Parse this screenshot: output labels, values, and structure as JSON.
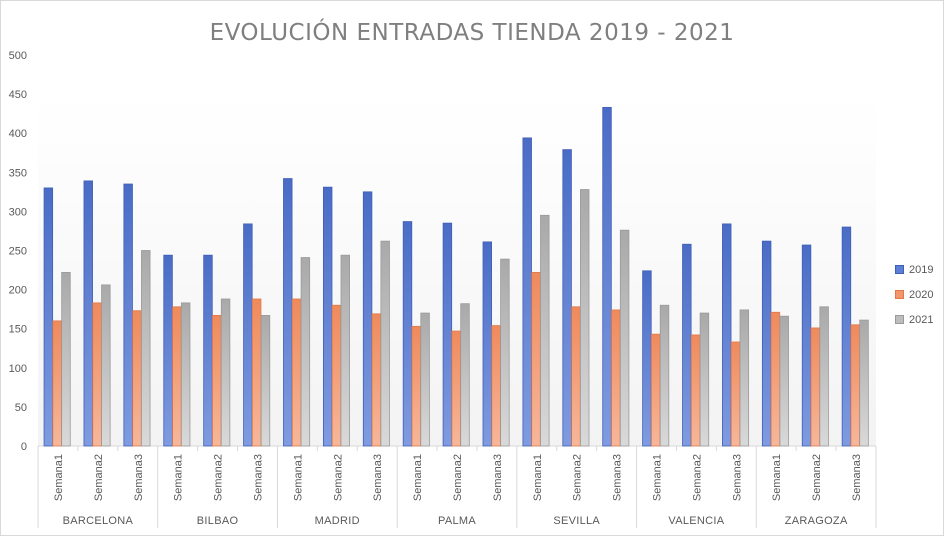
{
  "chart_data": {
    "type": "bar",
    "title": "EVOLUCIÓN ENTRADAS TIENDA 2019 - 2021",
    "ylim": [
      0,
      500
    ],
    "yticks": [
      "0",
      "50",
      "100",
      "150",
      "200",
      "250",
      "300",
      "350",
      "400",
      "450",
      "500"
    ],
    "legend_position": "right",
    "groups": [
      {
        "name": "BARCELONA",
        "categories": [
          "Semana1",
          "Semana2",
          "Semana3"
        ]
      },
      {
        "name": "BILBAO",
        "categories": [
          "Semana1",
          "Semana2",
          "Semana3"
        ]
      },
      {
        "name": "MADRID",
        "categories": [
          "Semana1",
          "Semana2",
          "Semana3"
        ]
      },
      {
        "name": "PALMA",
        "categories": [
          "Semana1",
          "Semana2",
          "Semana3"
        ]
      },
      {
        "name": "SEVILLA",
        "categories": [
          "Semana1",
          "Semana2",
          "Semana3"
        ]
      },
      {
        "name": "VALENCIA",
        "categories": [
          "Semana1",
          "Semana2",
          "Semana3"
        ]
      },
      {
        "name": "ZARAGOZA",
        "categories": [
          "Semana1",
          "Semana2",
          "Semana3"
        ]
      }
    ],
    "series": [
      {
        "name": "2019",
        "color": "#5b7fd4",
        "values": [
          330,
          339,
          335,
          244,
          244,
          284,
          342,
          331,
          325,
          287,
          285,
          261,
          394,
          379,
          433,
          224,
          258,
          284,
          262,
          257,
          280
        ]
      },
      {
        "name": "2020",
        "color": "#f3966a",
        "values": [
          160,
          183,
          173,
          178,
          167,
          188,
          188,
          180,
          169,
          153,
          147,
          154,
          222,
          178,
          174,
          143,
          142,
          133,
          171,
          151,
          155
        ]
      },
      {
        "name": "2021",
        "color": "#bdbdbd",
        "values": [
          222,
          206,
          250,
          183,
          188,
          167,
          241,
          244,
          262,
          170,
          182,
          239,
          295,
          328,
          276,
          180,
          170,
          174,
          166,
          178,
          161
        ]
      }
    ]
  }
}
